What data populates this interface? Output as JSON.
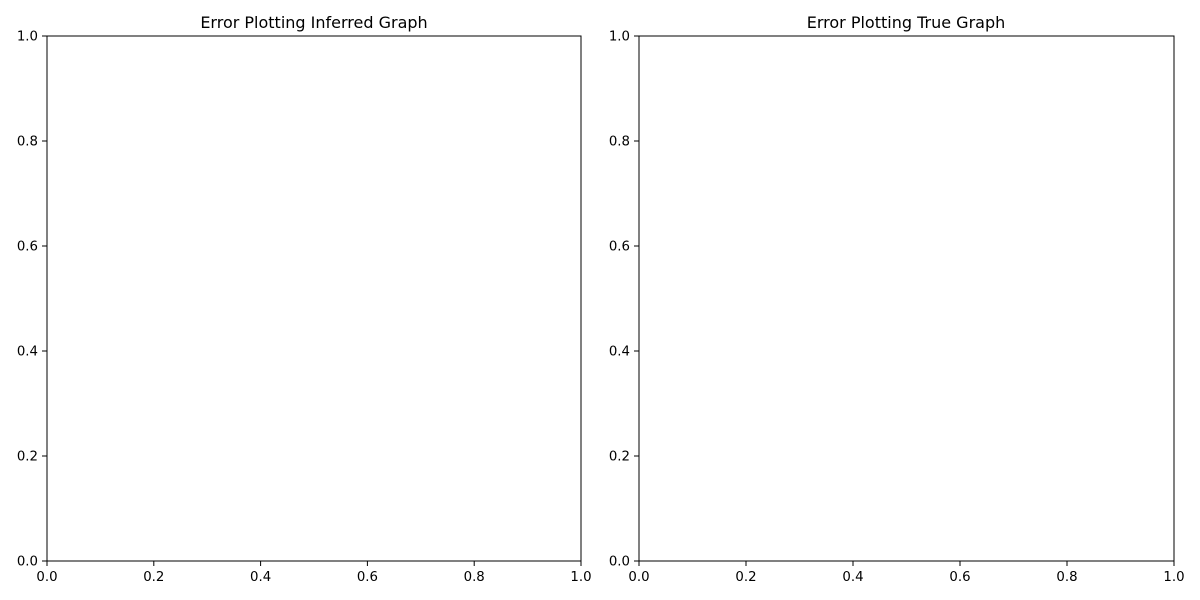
{
  "chart_data": [
    {
      "type": "scatter",
      "title": "Error Plotting Inferred Graph",
      "xlabel": "",
      "ylabel": "",
      "xlim": [
        0,
        1
      ],
      "ylim": [
        0,
        1
      ],
      "x_ticks": [
        "0.0",
        "0.2",
        "0.4",
        "0.6",
        "0.8",
        "1.0"
      ],
      "y_ticks": [
        "0.0",
        "0.2",
        "0.4",
        "0.6",
        "0.8",
        "1.0"
      ],
      "grid": false,
      "series": []
    },
    {
      "type": "scatter",
      "title": "Error Plotting True Graph",
      "xlabel": "",
      "ylabel": "",
      "xlim": [
        0,
        1
      ],
      "ylim": [
        0,
        1
      ],
      "x_ticks": [
        "0.0",
        "0.2",
        "0.4",
        "0.6",
        "0.8",
        "1.0"
      ],
      "y_ticks": [
        "0.0",
        "0.2",
        "0.4",
        "0.6",
        "0.8",
        "1.0"
      ],
      "grid": false,
      "series": []
    }
  ]
}
